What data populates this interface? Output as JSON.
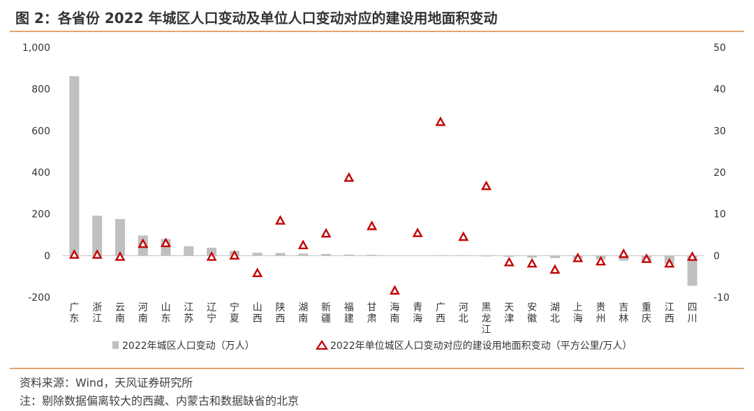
{
  "page": {
    "title": "图 2：各省份 2022 年城区人口变动及单位人口变动对应的建设用地面积变动",
    "source": "资料来源：Wind，天风证券研究所",
    "note": "注：剔除数据偏离较大的西藏、内蒙古和数据缺省的北京"
  },
  "colors": {
    "bar": "#c0c0c0",
    "marker": "#c00000",
    "rule": "#e8a36a"
  },
  "chart_data": {
    "type": "bar",
    "categories": [
      "广东",
      "浙江",
      "云南",
      "河南",
      "山东",
      "江苏",
      "辽宁",
      "宁夏",
      "山西",
      "陕西",
      "湖南",
      "新疆",
      "福建",
      "甘肃",
      "海南",
      "青海",
      "广西",
      "河北",
      "黑龙江",
      "天津",
      "安徽",
      "湖北",
      "上海",
      "贵州",
      "吉林",
      "重庆",
      "江西",
      "四川"
    ],
    "series": [
      {
        "name": "2022年城区人口变动（万人）",
        "kind": "bar",
        "axis": "left",
        "values": [
          862,
          192,
          176,
          97,
          80,
          45,
          38,
          23,
          14,
          13,
          10,
          8,
          5,
          4,
          1,
          1,
          0,
          0,
          -4,
          -6,
          -10,
          -12,
          -14,
          -18,
          -24,
          -30,
          -40,
          -145
        ]
      },
      {
        "name": "2022年单位城区人口变动对应的建设用地面积变动（平方公里/万人）",
        "kind": "triangle",
        "axis": "right",
        "values": [
          0.2,
          0.2,
          -0.3,
          2.8,
          3.0,
          null,
          -0.3,
          0.0,
          -4.2,
          8.4,
          2.5,
          5.3,
          18.7,
          7.1,
          -8.4,
          5.4,
          32.1,
          4.5,
          16.7,
          -1.6,
          -1.9,
          -3.4,
          -0.6,
          -1.4,
          0.4,
          -0.8,
          -1.9,
          -0.3
        ]
      }
    ],
    "y_left": {
      "min": -200,
      "max": 1000,
      "ticks": [
        -200,
        0,
        200,
        400,
        600,
        800,
        1000
      ],
      "tick_labels": [
        "-200",
        "0",
        "200",
        "400",
        "600",
        "800",
        "1,000"
      ]
    },
    "y_right": {
      "min": -10,
      "max": 50,
      "ticks": [
        -10,
        0,
        10,
        20,
        30,
        40,
        50
      ],
      "tick_labels": [
        "-10",
        "0",
        "10",
        "20",
        "30",
        "40",
        "50"
      ]
    },
    "grid": false,
    "legend": "bottom"
  }
}
